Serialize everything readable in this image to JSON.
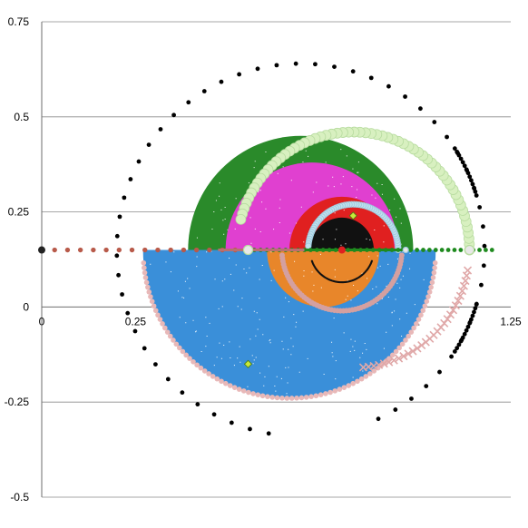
{
  "chart_data": {
    "type": "scatter",
    "title": "",
    "xlabel": "",
    "ylabel": "",
    "xlim": [
      0,
      1.25
    ],
    "ylim": [
      -0.5,
      0.75
    ],
    "x_ticks": [
      {
        "value": 0,
        "label": "0"
      },
      {
        "value": 0.25,
        "label": "0.25"
      },
      {
        "value": 0.5,
        "label": "0.5"
      },
      {
        "value": 0.75,
        "label": "0.75"
      },
      {
        "value": 1,
        "label": "1"
      },
      {
        "value": 1.25,
        "label": "1.25"
      }
    ],
    "y_ticks": [
      {
        "value": -0.5,
        "label": "-0.5"
      },
      {
        "value": -0.25,
        "label": "-0.25"
      },
      {
        "value": 0,
        "label": "0"
      },
      {
        "value": 0.25,
        "label": "0.25"
      },
      {
        "value": 0.5,
        "label": "0.5"
      },
      {
        "value": 0.75,
        "label": "0.75"
      }
    ],
    "grid": "horizontal",
    "legend": "none",
    "series": [
      {
        "shape": "dot-arc",
        "color": "#000000",
        "cx": 0.69,
        "cy": 0.15,
        "r": 0.49,
        "from_deg": -65,
        "to_deg": 260,
        "n": 55,
        "size": 2.4
      },
      {
        "shape": "dot-arc",
        "color": "#000000",
        "cx": 0.69,
        "cy": 0.15,
        "r": 0.49,
        "from_deg": -33,
        "to_deg": -17,
        "n": 14,
        "size": 2.4
      },
      {
        "shape": "dot-arc",
        "color": "#000000",
        "cx": 0.69,
        "cy": 0.15,
        "r": 0.49,
        "from_deg": 17,
        "to_deg": 33,
        "n": 14,
        "size": 2.4
      },
      {
        "shape": "filled-half-disk",
        "color": "#3a8fd9",
        "cx": 0.66,
        "cy": 0.15,
        "r": 0.39,
        "from_deg": 180,
        "to_deg": 360,
        "speckle": 0.45
      },
      {
        "shape": "filled-sector",
        "color": "#2a8a2a",
        "cx": 0.69,
        "cy": 0.15,
        "r": 0.3,
        "from_deg": 0,
        "to_deg": 180,
        "speckle": 0.45,
        "offset_y": -0.0,
        "clip": "bottom"
      },
      {
        "shape": "filled-half-disk",
        "color": "#e8862a",
        "cx": 0.75,
        "cy": 0.15,
        "r": 0.15,
        "from_deg": 180,
        "to_deg": 360,
        "speckle": 0.4
      },
      {
        "shape": "filled-half-disk",
        "color": "#e040d0",
        "cx": 0.72,
        "cy": 0.15,
        "r": 0.23,
        "from_deg": 0,
        "to_deg": 180,
        "speckle": 0.4
      },
      {
        "shape": "filled-half-disk",
        "color": "#e02020",
        "cx": 0.8,
        "cy": 0.15,
        "r": 0.14,
        "from_deg": 0,
        "to_deg": 180,
        "speckle": 0.3
      },
      {
        "shape": "filled-half-disk",
        "color": "#111111",
        "cx": 0.8,
        "cy": 0.15,
        "r": 0.085,
        "from_deg": 0,
        "to_deg": 180,
        "speckle": 0.35
      },
      {
        "shape": "dot-arc",
        "color": "#111111",
        "cx": 0.8,
        "cy": 0.15,
        "r": 0.085,
        "from_deg": 200,
        "to_deg": 340,
        "n": 70,
        "size": 1.1
      },
      {
        "shape": "dot-arc",
        "color": "#d8f0c0",
        "cx": 0.83,
        "cy": 0.15,
        "r": 0.31,
        "from_deg": 0,
        "to_deg": 165,
        "n": 60,
        "size": 5.5,
        "stroke": "#b8dca0"
      },
      {
        "shape": "dot-arc",
        "color": "#bfe0ee",
        "cx": 0.83,
        "cy": 0.15,
        "r": 0.12,
        "from_deg": 0,
        "to_deg": 175,
        "n": 60,
        "size": 3.2,
        "stroke": "#9cc8dc"
      },
      {
        "shape": "dot-arc",
        "color": "#e8b8b8",
        "cx": 0.66,
        "cy": 0.15,
        "r": 0.39,
        "from_deg": 185,
        "to_deg": 355,
        "n": 90,
        "size": 2.8
      },
      {
        "shape": "dot-arc",
        "color": "#d4a0a0",
        "cx": 0.8,
        "cy": 0.15,
        "r": 0.16,
        "from_deg": 185,
        "to_deg": 355,
        "n": 60,
        "size": 3.0
      },
      {
        "shape": "x-arc",
        "color": "#e0a8a8",
        "cx": 0.83,
        "cy": 0.15,
        "r": 0.31,
        "from_deg": -85,
        "to_deg": -10,
        "n": 30,
        "size": 4
      },
      {
        "shape": "dot-line",
        "color": "#b85a4a",
        "x0": 0,
        "x1": 0.55,
        "y": 0.15,
        "n": 17,
        "size": 2.7
      },
      {
        "shape": "dot-line",
        "color": "#1e8a1e",
        "x0": 0.55,
        "x1": 1.2,
        "y": 0.15,
        "n": 40,
        "size": 2.4
      },
      {
        "shape": "hline",
        "color": "#1e8a1e",
        "x0": 0.7,
        "x1": 0.97,
        "y": 0.15,
        "width": 3
      },
      {
        "shape": "hline",
        "color": "#b87070",
        "x0": 0.47,
        "x1": 0.7,
        "y": 0.15,
        "width": 3
      },
      {
        "shape": "point",
        "color": "#222222",
        "x": 0,
        "y": 0.15,
        "size": 4
      },
      {
        "shape": "point",
        "color": "#e02020",
        "x": 0.8,
        "y": 0.15,
        "size": 4
      },
      {
        "shape": "point",
        "color": "#e8e8e8",
        "x": 0.55,
        "y": 0.15,
        "size": 5,
        "stroke": "#b8dca0"
      },
      {
        "shape": "point",
        "color": "#e8e8e8",
        "x": 1.14,
        "y": 0.15,
        "size": 5,
        "stroke": "#b8dca0"
      },
      {
        "shape": "point",
        "color": "#e8e8e8",
        "x": 0.97,
        "y": 0.15,
        "size": 3,
        "stroke": "#9cc8dc"
      },
      {
        "shape": "diamond",
        "color": "#c8e83a",
        "x": 0.83,
        "y": 0.24,
        "size": 4
      },
      {
        "shape": "diamond",
        "color": "#c8e83a",
        "x": 0.55,
        "y": -0.15,
        "size": 4
      }
    ]
  }
}
